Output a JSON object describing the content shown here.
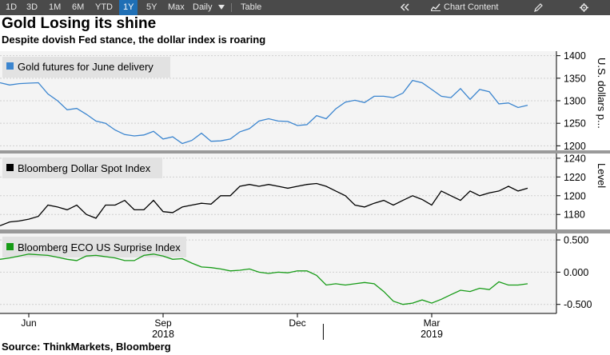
{
  "toolbar": {
    "ranges": [
      "1D",
      "3D",
      "1M",
      "6M",
      "YTD",
      "1Y",
      "5Y",
      "Max"
    ],
    "active_range": "1Y",
    "frequency": "Daily",
    "frequency_icon": "caret-down-icon",
    "table_label": "Table",
    "collapse_icon": "double-chevron-left-icon",
    "chart_content_label": "Chart Content",
    "chart_content_icon": "chart-icon",
    "edit_icon": "pencil-icon",
    "settings_icon": "gear-icon"
  },
  "title": "Gold Losing its shine",
  "subtitle": "Despite dovish Fed stance, the dollar index is roaring",
  "source": "Source: ThinkMarkets, Bloomberg",
  "colors": {
    "gold": "#3b85cf",
    "dollar": "#000000",
    "eco": "#169b16",
    "panel_bg": "#f4f4f4",
    "divider": "#9a9a9a"
  },
  "chart_data": [
    {
      "type": "line",
      "title": "Gold futures for June delivery",
      "ylabel": "U.S. dollars p...",
      "ylim": [
        1190,
        1410
      ],
      "yticks": [
        1200,
        1250,
        1300,
        1350,
        1400
      ],
      "ytick_labels": [
        "1200",
        "1250",
        "1300",
        "1350",
        "1400"
      ],
      "xlim": [
        0,
        58
      ],
      "x": [
        0,
        1,
        2,
        3,
        4,
        5,
        6,
        7,
        8,
        9,
        10,
        11,
        12,
        13,
        14,
        15,
        16,
        17,
        18,
        19,
        20,
        21,
        22,
        23,
        24,
        25,
        26,
        27,
        28,
        29,
        30,
        31,
        32,
        33,
        34,
        35,
        36,
        37,
        38,
        39,
        40,
        41,
        42,
        43,
        44,
        45,
        46,
        47,
        48,
        49,
        50,
        51,
        52,
        53,
        54,
        55
      ],
      "values": [
        1340,
        1335,
        1338,
        1339,
        1340,
        1315,
        1300,
        1280,
        1283,
        1270,
        1255,
        1250,
        1235,
        1225,
        1222,
        1224,
        1232,
        1215,
        1220,
        1205,
        1212,
        1228,
        1210,
        1211,
        1215,
        1231,
        1238,
        1255,
        1260,
        1255,
        1254,
        1245,
        1247,
        1267,
        1260,
        1282,
        1297,
        1301,
        1296,
        1310,
        1310,
        1307,
        1317,
        1345,
        1340,
        1325,
        1310,
        1307,
        1327,
        1303,
        1325,
        1320,
        1293,
        1295,
        1285,
        1290
      ]
    },
    {
      "type": "line",
      "title": "Bloomberg Dollar Spot Index",
      "ylabel": "Level",
      "ylim": [
        1164,
        1245
      ],
      "yticks": [
        1180,
        1200,
        1220,
        1240
      ],
      "ytick_labels": [
        "1180",
        "1200",
        "1220",
        "1240"
      ],
      "xlim": [
        0,
        58
      ],
      "x": [
        0,
        1,
        2,
        3,
        4,
        5,
        6,
        7,
        8,
        9,
        10,
        11,
        12,
        13,
        14,
        15,
        16,
        17,
        18,
        19,
        20,
        21,
        22,
        23,
        24,
        25,
        26,
        27,
        28,
        29,
        30,
        31,
        32,
        33,
        34,
        35,
        36,
        37,
        38,
        39,
        40,
        41,
        42,
        43,
        44,
        45,
        46,
        47,
        48,
        49,
        50,
        51,
        52,
        53,
        54,
        55
      ],
      "values": [
        1168,
        1172,
        1173,
        1175,
        1178,
        1190,
        1188,
        1185,
        1190,
        1180,
        1176,
        1190,
        1190,
        1195,
        1185,
        1185,
        1195,
        1183,
        1182,
        1188,
        1190,
        1192,
        1191,
        1200,
        1200,
        1210,
        1212,
        1210,
        1212,
        1210,
        1208,
        1210,
        1212,
        1213,
        1210,
        1205,
        1200,
        1190,
        1188,
        1192,
        1195,
        1190,
        1195,
        1200,
        1196,
        1190,
        1205,
        1200,
        1195,
        1205,
        1200,
        1203,
        1205,
        1210,
        1205,
        1208
      ]
    },
    {
      "type": "line",
      "title": "Bloomberg ECO US Surprise Index",
      "ylabel": "",
      "ylim": [
        -0.64,
        0.6
      ],
      "yticks": [
        0.5,
        0.0,
        -0.5
      ],
      "ytick_labels": [
        "0.500",
        "0.000",
        "-0.500"
      ],
      "xlim": [
        0,
        58
      ],
      "x": [
        0,
        1,
        2,
        3,
        4,
        5,
        6,
        7,
        8,
        9,
        10,
        11,
        12,
        13,
        14,
        15,
        16,
        17,
        18,
        19,
        20,
        21,
        22,
        23,
        24,
        25,
        26,
        27,
        28,
        29,
        30,
        31,
        32,
        33,
        34,
        35,
        36,
        37,
        38,
        39,
        40,
        41,
        42,
        43,
        44,
        45,
        46,
        47,
        48,
        49,
        50,
        51,
        52,
        53,
        54,
        55
      ],
      "values": [
        0.2,
        0.22,
        0.25,
        0.28,
        0.27,
        0.26,
        0.23,
        0.2,
        0.18,
        0.25,
        0.26,
        0.24,
        0.22,
        0.18,
        0.18,
        0.26,
        0.28,
        0.25,
        0.2,
        0.21,
        0.14,
        0.08,
        0.07,
        0.05,
        0.02,
        0.03,
        0.05,
        0.0,
        -0.02,
        0.0,
        -0.01,
        0.02,
        0.02,
        -0.05,
        -0.2,
        -0.18,
        -0.2,
        -0.18,
        -0.16,
        -0.18,
        -0.3,
        -0.45,
        -0.5,
        -0.48,
        -0.43,
        -0.48,
        -0.42,
        -0.35,
        -0.28,
        -0.3,
        -0.25,
        -0.27,
        -0.15,
        -0.2,
        -0.2,
        -0.18
      ]
    },
    {
      "type": "axis",
      "x_labels": [
        {
          "x": 3,
          "label": "Jun"
        },
        {
          "x": 17,
          "label": "Sep"
        },
        {
          "x": 31,
          "label": "Dec"
        },
        {
          "x": 45,
          "label": "Mar"
        }
      ],
      "year_labels": [
        {
          "x": 17,
          "label": "2018"
        },
        {
          "x": 45,
          "label": "2019"
        }
      ],
      "year_boundary_x": 33.7
    }
  ]
}
